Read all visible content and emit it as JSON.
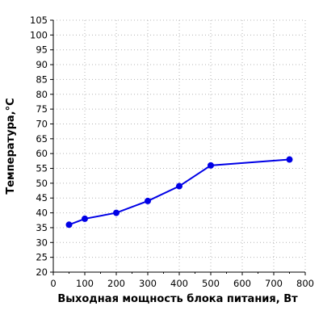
{
  "chart_data": {
    "type": "line",
    "title": "",
    "xlabel": "Выходная мощность блока питания, Вт",
    "ylabel": "Температура,°С",
    "xlim": [
      0,
      800
    ],
    "ylim": [
      20,
      105
    ],
    "x_ticks": [
      "0",
      "100",
      "200",
      "300",
      "400",
      "500",
      "600",
      "700",
      "800"
    ],
    "y_ticks": [
      "20",
      "25",
      "30",
      "35",
      "40",
      "45",
      "50",
      "55",
      "60",
      "65",
      "70",
      "75",
      "80",
      "85",
      "90",
      "95",
      "100",
      "105"
    ],
    "grid": true,
    "legend": "none",
    "series": [
      {
        "color": "#0000e6",
        "points": [
          {
            "x": 50,
            "y": 36
          },
          {
            "x": 100,
            "y": 38
          },
          {
            "x": 200,
            "y": 40
          },
          {
            "x": 300,
            "y": 44
          },
          {
            "x": 400,
            "y": 49
          },
          {
            "x": 500,
            "y": 56
          },
          {
            "x": 750,
            "y": 58
          }
        ]
      }
    ]
  }
}
